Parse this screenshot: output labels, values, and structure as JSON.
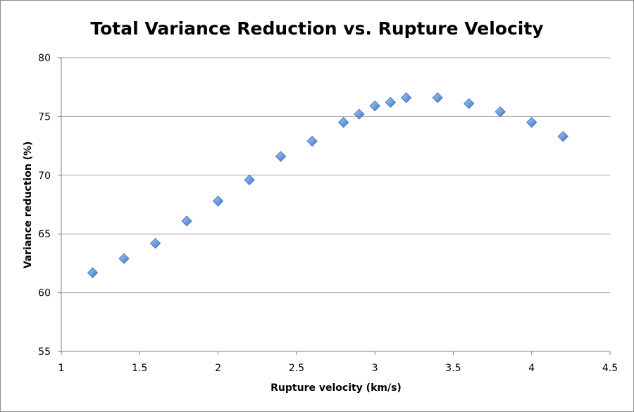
{
  "chart_data": {
    "type": "scatter",
    "title": "Total Variance Reduction vs. Rupture Velocity",
    "xlabel": "Rupture velocity (km/s)",
    "ylabel": "Variance reduction (%)",
    "xlim": [
      1,
      4.5
    ],
    "ylim": [
      55,
      80
    ],
    "x_ticks": [
      "1",
      "1.5",
      "2",
      "2.5",
      "3",
      "3.5",
      "4",
      "4.5"
    ],
    "y_ticks": [
      "55",
      "60",
      "65",
      "70",
      "75",
      "80"
    ],
    "grid": "horizontal",
    "marker": "diamond",
    "marker_color": "#6c9be0",
    "series": [
      {
        "x": [
          1.2,
          1.4,
          1.6,
          1.8,
          2.0,
          2.2,
          2.4,
          2.6,
          2.8,
          2.9,
          3.0,
          3.1,
          3.2,
          3.4,
          3.6,
          3.8,
          4.0,
          4.2
        ],
        "y": [
          61.7,
          62.9,
          64.2,
          66.1,
          67.8,
          69.6,
          71.6,
          72.9,
          74.5,
          75.2,
          75.9,
          76.2,
          76.6,
          76.6,
          76.1,
          75.4,
          74.5,
          73.3
        ]
      }
    ]
  }
}
